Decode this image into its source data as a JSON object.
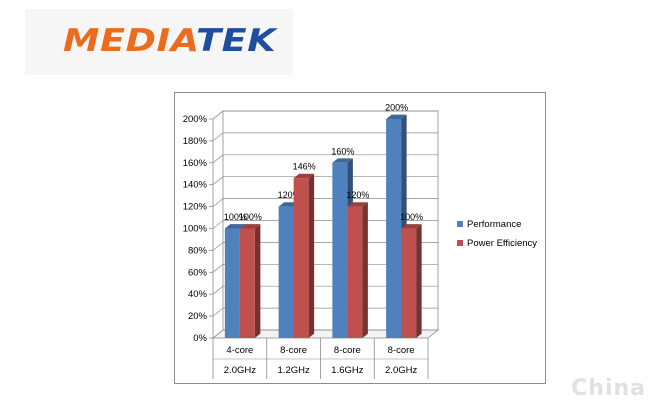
{
  "logo": {
    "part1": "MEDIA",
    "part2": "TEK",
    "color1": "#eb6c1d",
    "color2": "#1f4e9c"
  },
  "watermark": "China",
  "chart_data": {
    "type": "bar",
    "title": "",
    "xlabel": "",
    "ylabel": "",
    "categories": [
      [
        "4-core",
        "2.0GHz"
      ],
      [
        "8-core",
        "1.2GHz"
      ],
      [
        "8-core",
        "1.6GHz"
      ],
      [
        "8-core",
        "2.0GHz"
      ]
    ],
    "series": [
      {
        "name": "Performance",
        "values": [
          100,
          120,
          160,
          200
        ],
        "labels": [
          "100%",
          "120%",
          "160%",
          "200%"
        ],
        "color": "#4f81bd"
      },
      {
        "name": "Power Efficiency",
        "values": [
          100,
          146,
          120,
          100
        ],
        "labels": [
          "100%",
          "146%",
          "120%",
          "100%"
        ],
        "color": "#c0504d"
      }
    ],
    "ylim": [
      0,
      200
    ],
    "yticks": [
      "0%",
      "20%",
      "40%",
      "60%",
      "80%",
      "100%",
      "120%",
      "140%",
      "160%",
      "180%",
      "200%"
    ],
    "grid": true,
    "legend": "right",
    "style": "3d-clustered-column"
  }
}
